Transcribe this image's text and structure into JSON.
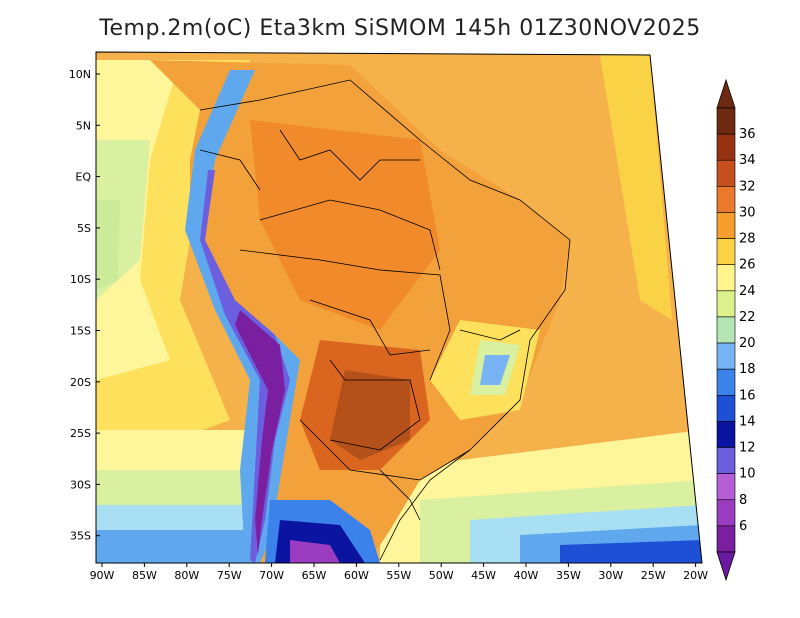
{
  "title": "Temp.2m(oC) Eta3km SiSMOM 145h 01Z30NOV2025",
  "latitude_labels": [
    "10N",
    "5N",
    "EQ",
    "5S",
    "10S",
    "15S",
    "20S",
    "25S",
    "30S",
    "35S"
  ],
  "longitude_labels": [
    "90W",
    "85W",
    "80W",
    "75W",
    "70W",
    "65W",
    "60W",
    "55W",
    "50W",
    "45W",
    "40W",
    "35W",
    "30W",
    "25W",
    "20W"
  ],
  "colorbar": {
    "labels": [
      "6",
      "8",
      "10",
      "12",
      "14",
      "16",
      "18",
      "20",
      "22",
      "24",
      "26",
      "28",
      "30",
      "32",
      "34",
      "36"
    ],
    "colors": [
      "#7a1fa0",
      "#9a3cbf",
      "#b45fd6",
      "#6b5fe0",
      "#0a14a0",
      "#1e50d6",
      "#3c82eb",
      "#78b4f5",
      "#b4e6b4",
      "#dcf08c",
      "#fff58c",
      "#fad246",
      "#f5a02d",
      "#eb782d",
      "#c8501e",
      "#963214",
      "#6e2a10"
    ],
    "triangle_low_color": "#6a1aa0",
    "triangle_high_color": "#6e2a10"
  }
}
